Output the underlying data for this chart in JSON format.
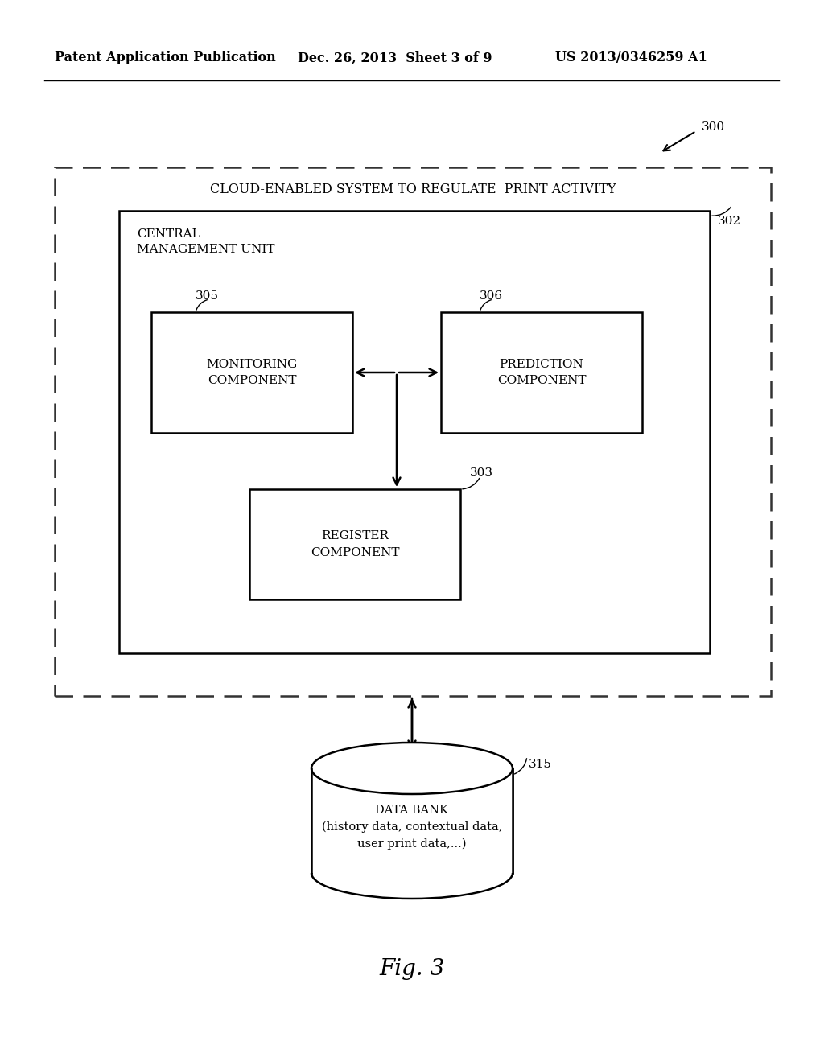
{
  "bg_color": "#ffffff",
  "header_left": "Patent Application Publication",
  "header_mid": "Dec. 26, 2013  Sheet 3 of 9",
  "header_right": "US 2013/0346259 A1",
  "fig_label": "Fig. 3",
  "ref_300": "300",
  "ref_302": "302",
  "ref_303": "303",
  "ref_305": "305",
  "ref_306": "306",
  "ref_315": "315",
  "outer_box_label": "CLOUD-ENABLED SYSTEM TO REGULATE  PRINT ACTIVITY",
  "cmu_label": "CENTRAL\nMANAGEMENT UNIT",
  "monitoring_label": "MONITORING\nCOMPONENT",
  "prediction_label": "PREDICTION\nCOMPONENT",
  "register_label": "REGISTER\nCOMPONENT",
  "databank_label": "DATA BANK\n(history data, contextual data,\nuser print data,...)"
}
